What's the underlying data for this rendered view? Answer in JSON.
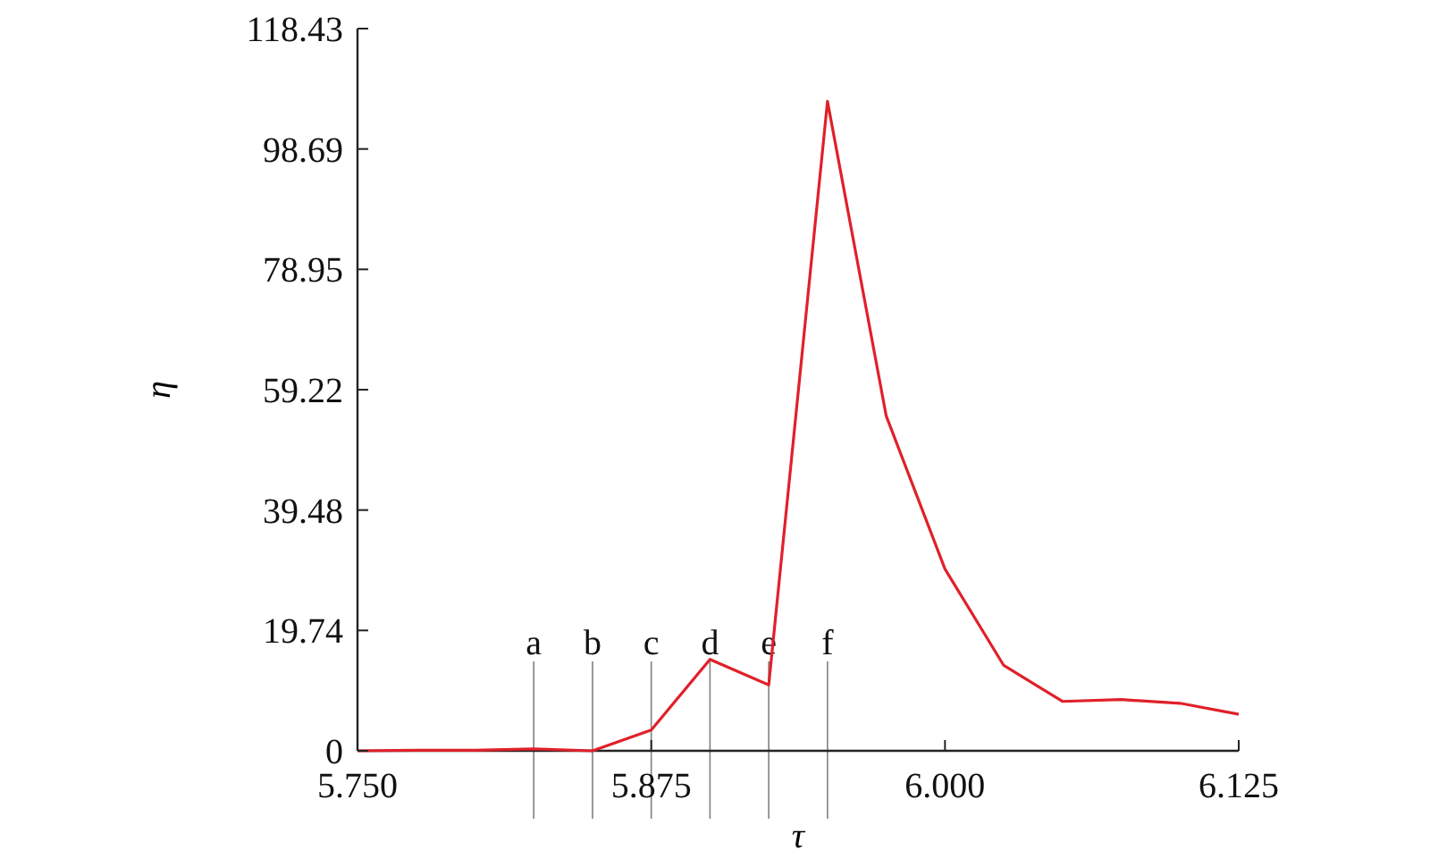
{
  "chart_data": {
    "type": "line",
    "xlabel": "τ",
    "ylabel": "η",
    "x": [
      5.75,
      5.775,
      5.8,
      5.825,
      5.85,
      5.875,
      5.9,
      5.925,
      5.95,
      5.975,
      6.0,
      6.025,
      6.05,
      6.075,
      6.1,
      6.125
    ],
    "series": [
      {
        "color": "#e0202a",
        "values": [
          0,
          0.1,
          0.1,
          0.3,
          0,
          3.4,
          15.0,
          10.8,
          106.5,
          54.9,
          29.8,
          14.0,
          8.1,
          8.4,
          7.8,
          6.0
        ]
      }
    ],
    "xlim": [
      5.75,
      6.125
    ],
    "xticks": [
      {
        "value": 5.75,
        "label": "5.750"
      },
      {
        "value": 5.875,
        "label": "5.875"
      },
      {
        "value": 6.0,
        "label": "6.000"
      },
      {
        "value": 6.125,
        "label": "6.125"
      }
    ],
    "ylim": [
      0,
      118.43
    ],
    "yticks": [
      0,
      19.74,
      39.48,
      59.22,
      78.95,
      98.69,
      118.43
    ],
    "ref_lines": [
      {
        "axis": "x",
        "value": 5.825,
        "label": "a",
        "color": "#808080"
      },
      {
        "axis": "x",
        "value": 5.85,
        "label": "b",
        "color": "#808080"
      },
      {
        "axis": "x",
        "value": 5.875,
        "label": "c",
        "color": "#808080"
      },
      {
        "axis": "x",
        "value": 5.9,
        "label": "d",
        "color": "#808080"
      },
      {
        "axis": "x",
        "value": 5.925,
        "label": "e",
        "color": "#808080"
      },
      {
        "axis": "x",
        "value": 5.95,
        "label": "f",
        "color": "#808080"
      }
    ],
    "grid": false
  }
}
